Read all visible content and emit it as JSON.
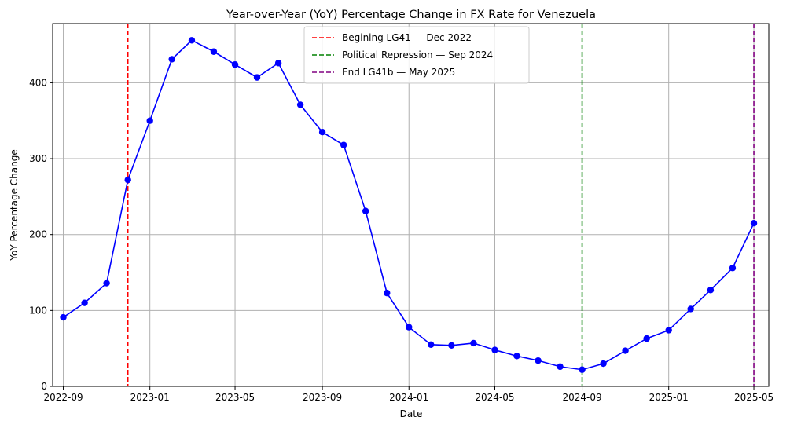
{
  "chart_data": {
    "type": "line",
    "title": "Year-over-Year (YoY) Percentage Change in FX Rate for Venezuela",
    "xlabel": "Date",
    "ylabel": "YoY Percentage Change",
    "grid": true,
    "legend_position": "top-center",
    "xlim": [
      "2022-08-17",
      "2025-05-22"
    ],
    "ylim": [
      0,
      478
    ],
    "x_ticks": [
      {
        "date": "2022-09-01",
        "label": "2022-09"
      },
      {
        "date": "2023-01-01",
        "label": "2023-01"
      },
      {
        "date": "2023-05-01",
        "label": "2023-05"
      },
      {
        "date": "2023-09-01",
        "label": "2023-09"
      },
      {
        "date": "2024-01-01",
        "label": "2024-01"
      },
      {
        "date": "2024-05-01",
        "label": "2024-05"
      },
      {
        "date": "2024-09-01",
        "label": "2024-09"
      },
      {
        "date": "2025-01-01",
        "label": "2025-01"
      },
      {
        "date": "2025-05-01",
        "label": "2025-05"
      }
    ],
    "y_ticks": [
      0,
      100,
      200,
      300,
      400
    ],
    "series": [
      {
        "color": "#0000ff",
        "marker": "circle",
        "x": [
          "2022-09-01",
          "2022-10-01",
          "2022-11-01",
          "2022-12-01",
          "2023-01-01",
          "2023-02-01",
          "2023-03-01",
          "2023-04-01",
          "2023-05-01",
          "2023-06-01",
          "2023-07-01",
          "2023-08-01",
          "2023-09-01",
          "2023-10-01",
          "2023-11-01",
          "2023-12-01",
          "2024-01-01",
          "2024-02-01",
          "2024-03-01",
          "2024-04-01",
          "2024-05-01",
          "2024-06-01",
          "2024-07-01",
          "2024-08-01",
          "2024-09-01",
          "2024-10-01",
          "2024-11-01",
          "2024-12-01",
          "2025-01-01",
          "2025-02-01",
          "2025-03-01",
          "2025-04-01",
          "2025-05-01"
        ],
        "values": [
          91,
          110,
          136,
          272,
          350,
          431,
          456,
          441,
          424,
          407,
          426,
          371,
          335,
          318,
          231,
          123,
          78,
          55,
          54,
          57,
          48,
          40,
          34,
          26,
          22,
          30,
          47,
          63,
          74,
          102,
          127,
          156,
          215
        ]
      }
    ],
    "annotations": [
      {
        "type": "vline",
        "date": "2022-12-01",
        "color": "#ff0000",
        "label": "Begining LG41 — Dec 2022"
      },
      {
        "type": "vline",
        "date": "2024-09-01",
        "color": "#008000",
        "label": "Political Repression — Sep 2024"
      },
      {
        "type": "vline",
        "date": "2025-05-01",
        "color": "#800080",
        "label": "End LG41b — May 2025"
      }
    ]
  }
}
